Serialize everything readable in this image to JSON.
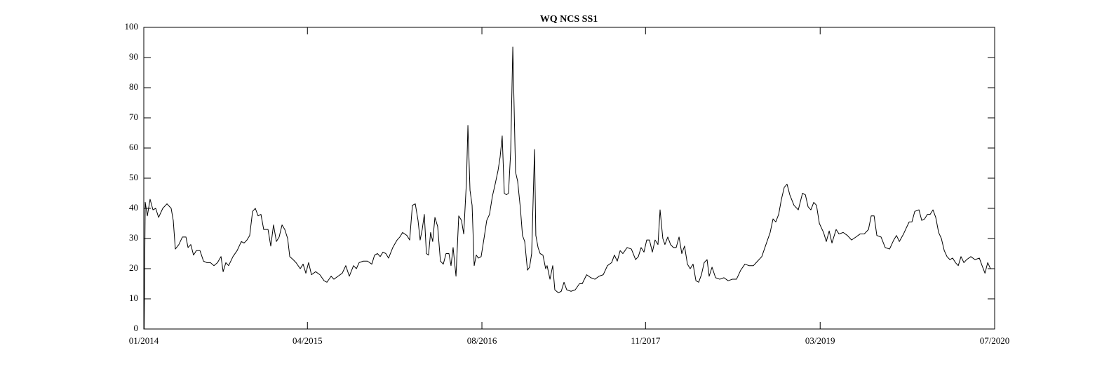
{
  "chart_data": {
    "type": "line",
    "title": "WQ NCS SS1",
    "color": "#000000",
    "xlim": [
      2014.0,
      2020.5
    ],
    "xticks": [
      {
        "value": 2014.0,
        "label": "01/2014"
      },
      {
        "value": 2015.25,
        "label": "04/2015"
      },
      {
        "value": 2016.583,
        "label": "08/2016"
      },
      {
        "value": 2017.833,
        "label": "11/2017"
      },
      {
        "value": 2019.167,
        "label": "03/2019"
      },
      {
        "value": 2020.5,
        "label": "07/2020"
      }
    ],
    "ylim": [
      0,
      100
    ],
    "yticks": [
      0,
      10,
      20,
      30,
      40,
      50,
      60,
      70,
      80,
      90,
      100
    ],
    "x": [
      2014.003,
      2014.011,
      2014.027,
      2014.048,
      2014.07,
      2014.091,
      2014.113,
      2014.145,
      2014.177,
      2014.209,
      2014.225,
      2014.241,
      2014.268,
      2014.295,
      2014.322,
      2014.338,
      2014.359,
      2014.38,
      2014.402,
      2014.429,
      2014.456,
      2014.482,
      2014.509,
      2014.536,
      2014.563,
      2014.59,
      2014.606,
      2014.627,
      2014.648,
      2014.681,
      2014.713,
      2014.745,
      2014.766,
      2014.788,
      2014.809,
      2014.831,
      2014.852,
      2014.873,
      2014.895,
      2014.916,
      2014.949,
      2014.97,
      2014.991,
      2015.013,
      2015.034,
      2015.056,
      2015.077,
      2015.099,
      2015.115,
      2015.141,
      2015.163,
      2015.195,
      2015.217,
      2015.238,
      2015.259,
      2015.281,
      2015.313,
      2015.345,
      2015.377,
      2015.399,
      2015.431,
      2015.452,
      2015.484,
      2015.516,
      2015.543,
      2015.57,
      2015.602,
      2015.624,
      2015.645,
      2015.677,
      2015.709,
      2015.742,
      2015.763,
      2015.785,
      2015.806,
      2015.827,
      2015.849,
      2015.87,
      2015.902,
      2015.935,
      2015.956,
      2015.977,
      2016.01,
      2016.031,
      2016.052,
      2016.074,
      2016.095,
      2016.111,
      2016.127,
      2016.143,
      2016.159,
      2016.175,
      2016.191,
      2016.207,
      2016.224,
      2016.245,
      2016.266,
      2016.288,
      2016.309,
      2016.331,
      2016.347,
      2016.363,
      2016.385,
      2016.406,
      2016.427,
      2016.444,
      2016.465,
      2016.476,
      2016.492,
      2016.508,
      2016.524,
      2016.54,
      2016.556,
      2016.577,
      2016.599,
      2016.62,
      2016.641,
      2016.663,
      2016.684,
      2016.706,
      2016.722,
      2016.738,
      2016.754,
      2016.77,
      2016.786,
      2016.803,
      2016.819,
      2016.84,
      2016.856,
      2016.877,
      2016.893,
      2016.91,
      2016.931,
      2016.947,
      2016.963,
      2016.985,
      2016.995,
      2017.012,
      2017.028,
      2017.049,
      2017.07,
      2017.081,
      2017.103,
      2017.124,
      2017.14,
      2017.167,
      2017.189,
      2017.21,
      2017.231,
      2017.264,
      2017.296,
      2017.328,
      2017.349,
      2017.383,
      2017.415,
      2017.446,
      2017.478,
      2017.51,
      2017.542,
      2017.574,
      2017.595,
      2017.617,
      2017.639,
      2017.66,
      2017.692,
      2017.725,
      2017.757,
      2017.778,
      2017.799,
      2017.821,
      2017.842,
      2017.863,
      2017.885,
      2017.906,
      2017.928,
      2017.944,
      2017.965,
      2017.981,
      2018.003,
      2018.024,
      2018.046,
      2018.067,
      2018.089,
      2018.11,
      2018.131,
      2018.153,
      2018.174,
      2018.196,
      2018.218,
      2018.239,
      2018.26,
      2018.281,
      2018.303,
      2018.319,
      2018.341,
      2018.368,
      2018.4,
      2018.432,
      2018.464,
      2018.496,
      2018.528,
      2018.56,
      2018.592,
      2018.624,
      2018.657,
      2018.689,
      2018.721,
      2018.753,
      2018.785,
      2018.807,
      2018.828,
      2018.85,
      2018.871,
      2018.893,
      2018.914,
      2018.935,
      2018.967,
      2019.0,
      2019.032,
      2019.054,
      2019.075,
      2019.096,
      2019.118,
      2019.139,
      2019.161,
      2019.193,
      2019.214,
      2019.236,
      2019.257,
      2019.289,
      2019.311,
      2019.343,
      2019.375,
      2019.407,
      2019.44,
      2019.472,
      2019.504,
      2019.536,
      2019.557,
      2019.579,
      2019.6,
      2019.632,
      2019.664,
      2019.697,
      2019.729,
      2019.75,
      2019.772,
      2019.804,
      2019.825,
      2019.847,
      2019.868,
      2019.89,
      2019.922,
      2019.943,
      2019.965,
      2019.986,
      2020.007,
      2020.029,
      2020.05,
      2020.072,
      2020.093,
      2020.115,
      2020.136,
      2020.158,
      2020.179,
      2020.201,
      2020.222,
      2020.243,
      2020.265,
      2020.286,
      2020.318,
      2020.35,
      2020.383,
      2020.404,
      2020.426,
      2020.447,
      2020.468,
      2020.5
    ],
    "values": [
      0,
      42,
      37.5,
      43,
      39.5,
      40,
      37,
      40,
      41.5,
      40,
      36,
      26.5,
      28,
      30.5,
      30.5,
      27,
      28,
      24.5,
      26,
      26,
      22.5,
      22,
      22,
      21,
      22,
      24,
      19,
      22,
      21,
      24,
      26,
      29,
      28.5,
      29.5,
      31,
      39,
      40,
      37.5,
      38,
      33,
      33,
      27.5,
      34.5,
      29,
      30.5,
      34.5,
      33,
      30,
      24,
      23,
      22,
      20,
      21.5,
      18.5,
      22,
      18,
      19,
      18,
      16,
      15.5,
      17.5,
      16.5,
      17.5,
      18.5,
      21,
      17.5,
      21,
      20,
      22,
      22.5,
      22.5,
      21.5,
      24.5,
      25,
      24,
      25.5,
      25,
      23.5,
      27,
      29.5,
      30.5,
      32,
      31,
      29.5,
      41,
      41.5,
      36,
      29.5,
      33,
      38,
      25,
      24.5,
      32,
      29,
      37,
      34,
      22.5,
      21.5,
      25,
      25,
      21,
      27,
      17.5,
      37.5,
      36,
      31.5,
      49,
      67.5,
      46,
      41,
      21,
      24.5,
      23.5,
      24,
      30,
      36,
      38,
      44,
      48,
      52.5,
      57,
      64,
      45,
      44.5,
      45,
      59,
      93.5,
      52,
      49,
      40,
      31,
      29,
      19.5,
      20.5,
      25,
      59.5,
      31,
      27,
      25,
      24.5,
      20,
      21,
      16.5,
      21,
      13,
      12,
      12.5,
      15.5,
      13,
      12.5,
      13,
      15,
      15,
      18,
      17,
      16.5,
      17.5,
      18,
      21,
      22,
      24.5,
      22.5,
      26,
      25,
      27,
      26.5,
      23,
      24,
      27,
      25.5,
      29.5,
      29.5,
      25.5,
      29.5,
      28,
      39.5,
      30,
      28,
      30.5,
      28,
      27,
      27,
      30.5,
      25,
      27.5,
      21.5,
      20,
      21.5,
      16,
      15.5,
      18,
      22,
      23,
      17.5,
      20.5,
      17,
      16.5,
      17,
      16,
      16.5,
      16.5,
      19.5,
      21.5,
      21,
      21,
      22.5,
      24,
      28,
      32,
      36.5,
      35.5,
      38,
      43,
      47,
      48,
      44.5,
      41,
      39.5,
      45,
      44.5,
      40.5,
      39.5,
      42,
      41,
      35,
      32,
      29,
      32.5,
      28.5,
      33,
      31.5,
      32,
      31,
      29.5,
      30.5,
      31.5,
      31.5,
      33,
      37.5,
      37.5,
      31,
      30.5,
      27,
      26.5,
      29.5,
      31,
      29,
      31.5,
      33.5,
      35.5,
      35.5,
      39,
      39.5,
      36,
      36.5,
      38,
      38,
      39.5,
      37,
      32,
      30,
      26,
      24,
      23,
      23.5,
      22,
      21,
      24,
      22,
      23,
      24,
      23,
      23.5,
      21,
      18.5,
      22,
      20,
      20
    ]
  }
}
